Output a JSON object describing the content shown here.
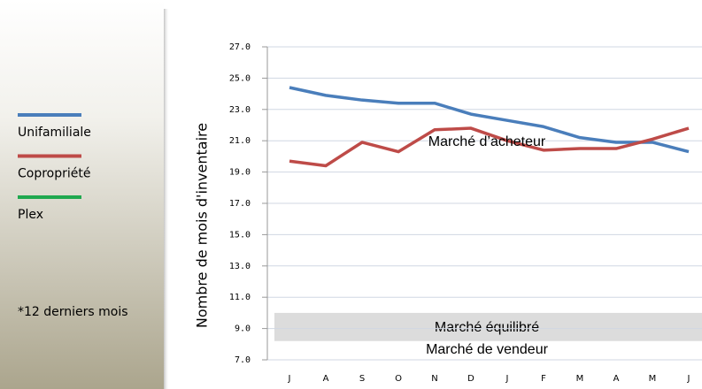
{
  "chart_data": {
    "type": "line",
    "categories": [
      "J",
      "A",
      "S",
      "O",
      "N",
      "D",
      "J",
      "F",
      "M",
      "A",
      "M",
      "J"
    ],
    "series": [
      {
        "name": "Unifamiliale",
        "color": "#4a7ebb",
        "values": [
          24.4,
          23.9,
          23.6,
          23.4,
          23.4,
          22.7,
          22.3,
          21.9,
          21.2,
          20.9,
          20.9,
          20.3
        ]
      },
      {
        "name": "Copropriété",
        "color": "#be4b48",
        "values": [
          19.7,
          19.4,
          20.9,
          20.3,
          21.7,
          21.8,
          21.0,
          20.4,
          20.5,
          20.5,
          21.1,
          21.8
        ]
      },
      {
        "name": "Plex",
        "color": "#1fa84f",
        "values": [
          null,
          null,
          null,
          null,
          null,
          null,
          null,
          null,
          null,
          null,
          null,
          null
        ]
      }
    ],
    "ylabel": "Nombre de mois d'inventaire",
    "ylim": [
      7.0,
      27.0
    ],
    "yticks": [
      {
        "value": 7,
        "label": "7.0"
      },
      {
        "value": 9,
        "label": "9.0"
      },
      {
        "value": 11,
        "label": "11.0"
      },
      {
        "value": 13,
        "label": "13.0"
      },
      {
        "value": 15,
        "label": "15.0"
      },
      {
        "value": 17,
        "label": "17.0"
      },
      {
        "value": 19,
        "label": "19.0"
      },
      {
        "value": 21,
        "label": "21.0"
      },
      {
        "value": 23,
        "label": "23.0"
      },
      {
        "value": 25,
        "label": "25.0"
      },
      {
        "value": 27,
        "label": "27.0"
      }
    ],
    "grid": true,
    "bands": [
      {
        "label": "Marché équilibré",
        "from": 8.2,
        "to": 10.0,
        "color": "#dcdcdc"
      }
    ],
    "annotations": [
      "Marché d’acheteur",
      "Marché de vendeur"
    ],
    "note": "*12 derniers mois"
  }
}
